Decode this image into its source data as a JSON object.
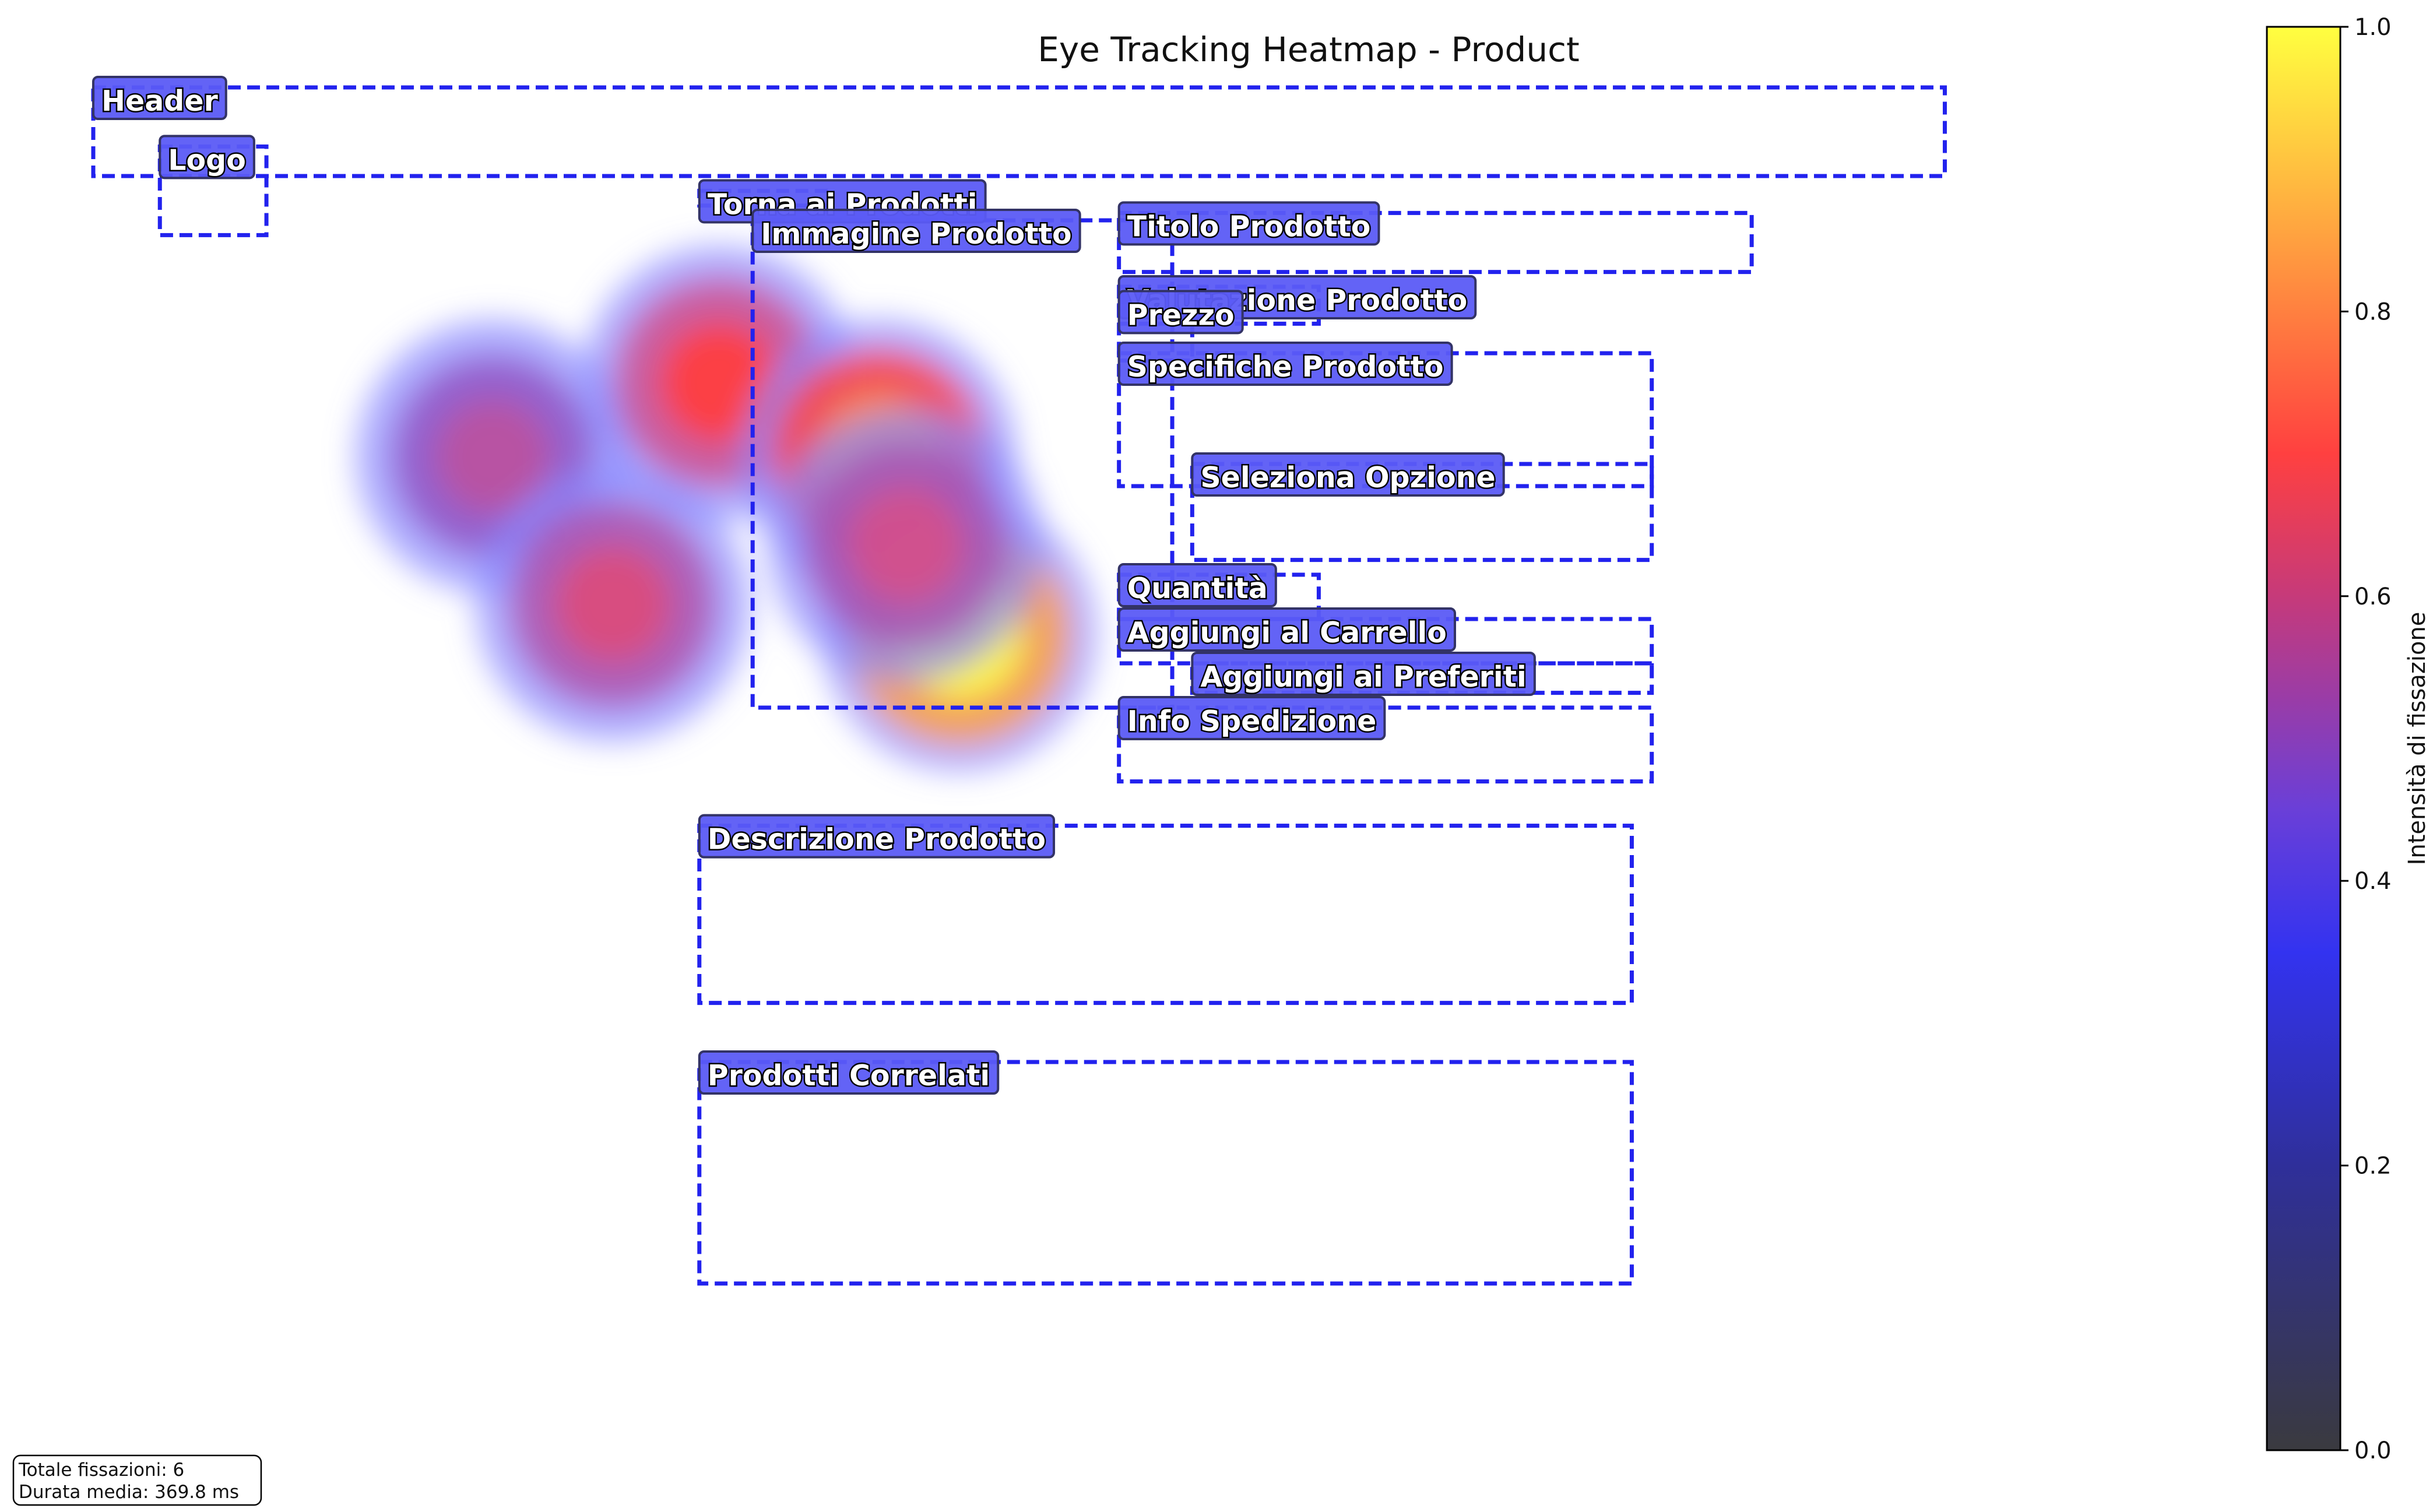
{
  "chart_data": {
    "type": "heatmap",
    "title": "Eye Tracking Heatmap - Product",
    "xlim": [
      0,
      1560
    ],
    "ylim": [
      0,
      900
    ],
    "fixations": [
      {
        "x": 300,
        "y": 250,
        "intensity": 0.55
      },
      {
        "x": 390,
        "y": 350,
        "intensity": 0.62
      },
      {
        "x": 470,
        "y": 200,
        "intensity": 0.7
      },
      {
        "x": 590,
        "y": 250,
        "intensity": 0.83
      },
      {
        "x": 650,
        "y": 370,
        "intensity": 1.0
      },
      {
        "x": 610,
        "y": 310,
        "intensity": 0.6
      }
    ],
    "regions": [
      {
        "label": "Header",
        "x": [
          0,
          1390
        ],
        "y": [
          0,
          60
        ]
      },
      {
        "label": "Logo",
        "x": [
          50,
          130
        ],
        "y": [
          40,
          100
        ]
      },
      {
        "label": "Torna ai Prodotti",
        "x": [
          455,
          555
        ],
        "y": [
          70,
          80
        ]
      },
      {
        "label": "Immagine Prodotto",
        "x": [
          495,
          810
        ],
        "y": [
          90,
          420
        ]
      },
      {
        "label": "Titolo Prodotto",
        "x": [
          770,
          1245
        ],
        "y": [
          85,
          125
        ]
      },
      {
        "label": "Valutazione Prodotto",
        "x": [
          770,
          920
        ],
        "y": [
          135,
          160
        ]
      },
      {
        "label": "Prezzo",
        "x": [
          770,
          825
        ],
        "y": [
          145,
          185
        ]
      },
      {
        "label": "Specifiche Prodotto",
        "x": [
          770,
          1170
        ],
        "y": [
          180,
          270
        ]
      },
      {
        "label": "Seleziona Opzione",
        "x": [
          825,
          1170
        ],
        "y": [
          255,
          320
        ]
      },
      {
        "label": "Quantità",
        "x": [
          770,
          920
        ],
        "y": [
          330,
          360
        ]
      },
      {
        "label": "Aggiungi al Carrello",
        "x": [
          770,
          1170
        ],
        "y": [
          360,
          390
        ]
      },
      {
        "label": "Aggiungi ai Preferiti",
        "x": [
          825,
          1170
        ],
        "y": [
          390,
          410
        ]
      },
      {
        "label": "Info Spedizione",
        "x": [
          770,
          1170
        ],
        "y": [
          420,
          470
        ]
      },
      {
        "label": "Descrizione Prodotto",
        "x": [
          455,
          1155
        ],
        "y": [
          500,
          620
        ]
      },
      {
        "label": "Prodotti Correlati",
        "x": [
          455,
          1155
        ],
        "y": [
          660,
          810
        ]
      }
    ],
    "colorbar": {
      "label": "Intensità di fissazione",
      "ticks": [
        "0.0",
        "0.2",
        "0.4",
        "0.6",
        "0.8",
        "1.0"
      ],
      "colors": [
        "#3a3a3f",
        "#3333dd",
        "#4b48f0",
        "#ff3a3a",
        "#ffa040",
        "#ffff40"
      ]
    },
    "stats": {
      "line1": "Totale fissazioni: 6",
      "line2": "Durata media: 369.8 ms"
    },
    "colors": {
      "region_border": "#2222ee",
      "label_fill": "#5b5bf5",
      "label_border": "#333366"
    }
  }
}
